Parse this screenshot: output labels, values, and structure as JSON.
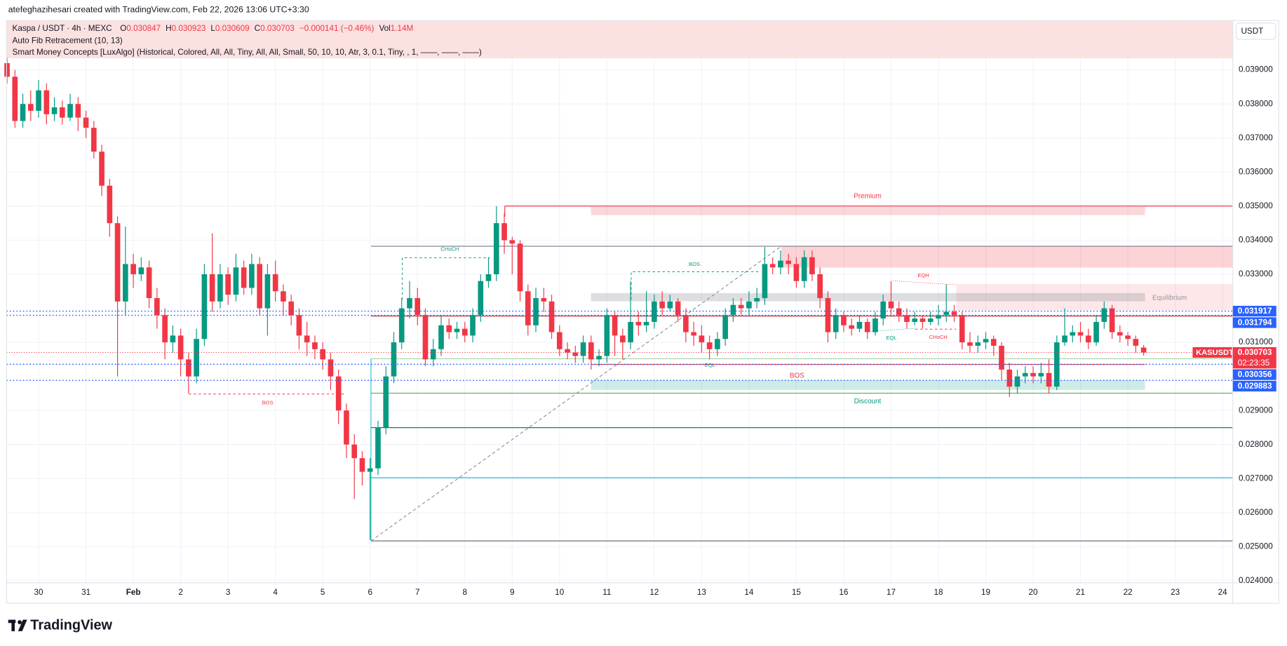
{
  "chart_data": {
    "type": "candlestick",
    "credit": "atefeghazihesari created with TradingView.com, Feb 22, 2026 13:06 UTC+3:30",
    "legend": {
      "symbol": "Kaspa / USDT · 4h · MEXC",
      "labels": [
        "O",
        "H",
        "L",
        "C"
      ],
      "change": "−0.000141 (−0.46%)",
      "volume_label": "Vol",
      "volume": "1.14M"
    },
    "indicators": [
      "Auto Fib Retracement (10, 13)",
      "Smart Money Concepts [LuxAlgo] (Historical, Colored, All, All, Tiny, All, All, Small, 50, 10, 10, Atr, 3, 0.1, Tiny, , 1, ——, ——, ——)"
    ],
    "currency": "USDT",
    "ticker": "KASUSDT",
    "countdown": "02:23:35",
    "logo": "TradingView",
    "annotations": [
      "BOS",
      "CHoCH",
      "BOS",
      "Premium",
      "Equilibrium",
      "BOS",
      "Discount",
      "EQH",
      "CHoCH",
      "EQL",
      "EQL"
    ],
    "up_color": "#089981",
    "down_color": "#f23645",
    "grid": true,
    "price_labels": [
      {
        "value": 0.031917,
        "color": "#2962ff"
      },
      {
        "value": 0.031794,
        "color": "#2962ff"
      },
      {
        "value": 0.030356,
        "color": "#2962ff"
      },
      {
        "value": 0.029883,
        "color": "#2962ff"
      }
    ],
    "xlim": [
      -0.06,
      155.3
    ],
    "ylim": [
      0.02394,
      0.04045
    ],
    "xticks": [
      {
        "value": 4,
        "label": "30"
      },
      {
        "value": 10,
        "label": "31"
      },
      {
        "value": 16,
        "label": "Feb"
      },
      {
        "value": 22,
        "label": "2"
      },
      {
        "value": 28,
        "label": "3"
      },
      {
        "value": 34,
        "label": "4"
      },
      {
        "value": 40,
        "label": "5"
      },
      {
        "value": 46,
        "label": "6"
      },
      {
        "value": 52,
        "label": "7"
      },
      {
        "value": 58,
        "label": "8"
      },
      {
        "value": 64,
        "label": "9"
      },
      {
        "value": 70,
        "label": "10"
      },
      {
        "value": 76,
        "label": "11"
      },
      {
        "value": 82,
        "label": "12"
      },
      {
        "value": 88,
        "label": "13"
      },
      {
        "value": 94,
        "label": "14"
      },
      {
        "value": 100,
        "label": "15"
      },
      {
        "value": 106,
        "label": "16"
      },
      {
        "value": 112,
        "label": "17"
      },
      {
        "value": 118,
        "label": "18"
      },
      {
        "value": 124,
        "label": "19"
      },
      {
        "value": 130,
        "label": "20"
      },
      {
        "value": 136,
        "label": "21"
      },
      {
        "value": 142,
        "label": "22"
      },
      {
        "value": 148,
        "label": "23"
      },
      {
        "value": 154,
        "label": "24"
      }
    ],
    "yticks": [
      {
        "value": 0.024,
        "label": "0.024000"
      },
      {
        "value": 0.025,
        "label": "0.025000"
      },
      {
        "value": 0.026,
        "label": "0.026000"
      },
      {
        "value": 0.027,
        "label": "0.027000"
      },
      {
        "value": 0.028,
        "label": "0.028000"
      },
      {
        "value": 0.029,
        "label": "0.029000"
      },
      {
        "value": 0.031,
        "label": "0.031000"
      },
      {
        "value": 0.033,
        "label": "0.033000"
      },
      {
        "value": 0.034,
        "label": "0.034000"
      },
      {
        "value": 0.035,
        "label": "0.035000"
      },
      {
        "value": 0.036,
        "label": "0.036000"
      },
      {
        "value": 0.037,
        "label": "0.037000"
      },
      {
        "value": 0.038,
        "label": "0.038000"
      },
      {
        "value": 0.039,
        "label": "0.039000"
      }
    ],
    "x": [
      0,
      1,
      2,
      3,
      4,
      5,
      6,
      7,
      8,
      9,
      10,
      11,
      12,
      13,
      14,
      15,
      16,
      17,
      18,
      19,
      20,
      21,
      22,
      23,
      24,
      25,
      26,
      27,
      28,
      29,
      30,
      31,
      32,
      33,
      34,
      35,
      36,
      37,
      38,
      39,
      40,
      41,
      42,
      43,
      44,
      45,
      46,
      47,
      48,
      49,
      50,
      51,
      52,
      53,
      54,
      55,
      56,
      57,
      58,
      59,
      60,
      61,
      62,
      63,
      64,
      65,
      66,
      67,
      68,
      69,
      70,
      71,
      72,
      73,
      74,
      75,
      76,
      77,
      78,
      79,
      80,
      81,
      82,
      83,
      84,
      85,
      86,
      87,
      88,
      89,
      90,
      91,
      92,
      93,
      94,
      95,
      96,
      97,
      98,
      99,
      100,
      101,
      102,
      103,
      104,
      105,
      106,
      107,
      108,
      109,
      110,
      111,
      112,
      113,
      114,
      115,
      116,
      117,
      118,
      119,
      120,
      121,
      122,
      123,
      124,
      125,
      126,
      127,
      128,
      129,
      130,
      131,
      132,
      133,
      134,
      135,
      136,
      137,
      138,
      139,
      140,
      141,
      142,
      143,
      144
    ],
    "open": [
      0.0392,
      0.0388,
      0.0375,
      0.038,
      0.0378,
      0.0384,
      0.0377,
      0.0379,
      0.0376,
      0.038,
      0.0376,
      0.0373,
      0.0366,
      0.0356,
      0.0345,
      0.0322,
      0.0333,
      0.033,
      0.0332,
      0.0323,
      0.0318,
      0.031,
      0.0312,
      0.0305,
      0.03,
      0.0311,
      0.033,
      0.0322,
      0.033,
      0.0324,
      0.0332,
      0.0326,
      0.0333,
      0.032,
      0.033,
      0.0325,
      0.0322,
      0.0318,
      0.0312,
      0.031,
      0.0308,
      0.0305,
      0.03,
      0.029,
      0.028,
      0.0276,
      0.0272,
      0.0273,
      0.0285,
      0.03,
      0.031,
      0.032,
      0.0323,
      0.0318,
      0.0305,
      0.0308,
      0.0315,
      0.0313,
      0.0314,
      0.0312,
      0.0318,
      0.0328,
      0.033,
      0.0345,
      0.034,
      0.0339,
      0.0325,
      0.0315,
      0.0323,
      0.0322,
      0.0313,
      0.0308,
      0.0307,
      0.0306,
      0.031,
      0.0305,
      0.0306,
      0.0318,
      0.0312,
      0.031,
      0.0316,
      0.0315,
      0.0316,
      0.0322,
      0.032,
      0.0322,
      0.0318,
      0.0313,
      0.0312,
      0.031,
      0.0308,
      0.0311,
      0.0318,
      0.0321,
      0.032,
      0.0322,
      0.0323,
      0.0333,
      0.0332,
      0.0334,
      0.0333,
      0.0328,
      0.0335,
      0.033,
      0.0323,
      0.0313,
      0.0318,
      0.0315,
      0.0314,
      0.0316,
      0.0313,
      0.0317,
      0.0322,
      0.032,
      0.0318,
      0.0316,
      0.0317,
      0.0316,
      0.0317,
      0.0318,
      0.0319,
      0.0318,
      0.031,
      0.0309,
      0.031,
      0.0311,
      0.0309,
      0.0302,
      0.0297,
      0.03,
      0.0301,
      0.03,
      0.0301,
      0.0297,
      0.031,
      0.0312,
      0.0313,
      0.0312,
      0.031,
      0.0316,
      0.032,
      0.0313,
      0.0312,
      0.0311,
      0.030847
    ],
    "high": [
      0.0394,
      0.039,
      0.0383,
      0.0384,
      0.0387,
      0.0386,
      0.0382,
      0.0381,
      0.0383,
      0.0382,
      0.0378,
      0.0375,
      0.0368,
      0.0358,
      0.0347,
      0.0344,
      0.0336,
      0.0335,
      0.0334,
      0.0326,
      0.032,
      0.0315,
      0.0314,
      0.0307,
      0.0314,
      0.0333,
      0.0342,
      0.0333,
      0.0332,
      0.0336,
      0.0334,
      0.0336,
      0.0335,
      0.0333,
      0.0334,
      0.0327,
      0.0324,
      0.032,
      0.0316,
      0.0312,
      0.031,
      0.0307,
      0.0302,
      0.0292,
      0.0283,
      0.0278,
      0.0276,
      0.0287,
      0.0303,
      0.0313,
      0.0323,
      0.0328,
      0.0326,
      0.032,
      0.0311,
      0.0318,
      0.0317,
      0.0316,
      0.0316,
      0.032,
      0.033,
      0.0335,
      0.035,
      0.0348,
      0.0341,
      0.034,
      0.0327,
      0.0326,
      0.0326,
      0.0324,
      0.0315,
      0.031,
      0.0309,
      0.0312,
      0.0312,
      0.0308,
      0.032,
      0.0319,
      0.0314,
      0.0328,
      0.0319,
      0.0325,
      0.0324,
      0.0325,
      0.0324,
      0.0323,
      0.032,
      0.0316,
      0.0315,
      0.0312,
      0.0313,
      0.032,
      0.0323,
      0.0323,
      0.0325,
      0.0326,
      0.0338,
      0.0335,
      0.0337,
      0.0336,
      0.0335,
      0.0337,
      0.0337,
      0.0332,
      0.0325,
      0.032,
      0.0319,
      0.0317,
      0.0318,
      0.0317,
      0.0319,
      0.0324,
      0.0328,
      0.0322,
      0.032,
      0.0319,
      0.0318,
      0.0319,
      0.0321,
      0.0327,
      0.0321,
      0.0319,
      0.0313,
      0.0312,
      0.0313,
      0.0312,
      0.031,
      0.0304,
      0.0302,
      0.0303,
      0.0303,
      0.0304,
      0.0305,
      0.0312,
      0.032,
      0.0315,
      0.0316,
      0.0314,
      0.0318,
      0.0322,
      0.0321,
      0.0315,
      0.0313,
      0.0312,
      0.030923
    ],
    "low": [
      0.0386,
      0.0373,
      0.0373,
      0.0375,
      0.0376,
      0.0374,
      0.0375,
      0.0374,
      0.0375,
      0.0372,
      0.037,
      0.0364,
      0.0353,
      0.0341,
      0.03,
      0.0318,
      0.0326,
      0.0328,
      0.032,
      0.0314,
      0.0305,
      0.0307,
      0.03,
      0.0295,
      0.0298,
      0.0309,
      0.0319,
      0.032,
      0.0321,
      0.0322,
      0.0324,
      0.0324,
      0.0318,
      0.0312,
      0.0322,
      0.0318,
      0.0315,
      0.0308,
      0.0306,
      0.0305,
      0.0302,
      0.0296,
      0.0286,
      0.0276,
      0.0264,
      0.0268,
      0.0252,
      0.0271,
      0.0283,
      0.0298,
      0.0308,
      0.0317,
      0.0315,
      0.0303,
      0.0303,
      0.0306,
      0.0311,
      0.0311,
      0.031,
      0.031,
      0.0316,
      0.0326,
      0.0328,
      0.0336,
      0.033,
      0.0322,
      0.0312,
      0.0313,
      0.0319,
      0.0311,
      0.0306,
      0.0305,
      0.0304,
      0.0304,
      0.0302,
      0.0303,
      0.0304,
      0.0306,
      0.0305,
      0.0308,
      0.0312,
      0.0313,
      0.0314,
      0.0318,
      0.0319,
      0.0316,
      0.031,
      0.0309,
      0.0307,
      0.0305,
      0.0306,
      0.0309,
      0.0316,
      0.0318,
      0.0318,
      0.032,
      0.0321,
      0.033,
      0.033,
      0.033,
      0.0326,
      0.0326,
      0.0328,
      0.032,
      0.031,
      0.0311,
      0.0313,
      0.0312,
      0.0313,
      0.0311,
      0.0312,
      0.0315,
      0.0318,
      0.0316,
      0.0314,
      0.0315,
      0.0314,
      0.0315,
      0.0315,
      0.0316,
      0.0316,
      0.0308,
      0.0307,
      0.0307,
      0.0308,
      0.0306,
      0.0299,
      0.0294,
      0.0295,
      0.0298,
      0.0298,
      0.0298,
      0.0295,
      0.0296,
      0.0309,
      0.031,
      0.031,
      0.0308,
      0.0309,
      0.0314,
      0.0311,
      0.031,
      0.0309,
      0.0307,
      0.030609
    ],
    "close": [
      0.0388,
      0.0375,
      0.038,
      0.0378,
      0.0384,
      0.0377,
      0.0379,
      0.0376,
      0.038,
      0.0376,
      0.0373,
      0.0366,
      0.0356,
      0.0345,
      0.0322,
      0.0333,
      0.033,
      0.0332,
      0.0323,
      0.0318,
      0.031,
      0.0312,
      0.0305,
      0.03,
      0.0311,
      0.033,
      0.0322,
      0.033,
      0.0324,
      0.0332,
      0.0326,
      0.0333,
      0.032,
      0.033,
      0.0325,
      0.0322,
      0.0318,
      0.0312,
      0.031,
      0.0308,
      0.0305,
      0.03,
      0.029,
      0.028,
      0.0276,
      0.0272,
      0.0273,
      0.0285,
      0.03,
      0.031,
      0.032,
      0.0323,
      0.0318,
      0.0305,
      0.0308,
      0.0315,
      0.0313,
      0.0314,
      0.0312,
      0.0318,
      0.0328,
      0.033,
      0.0345,
      0.034,
      0.0339,
      0.0325,
      0.0315,
      0.0323,
      0.0322,
      0.0313,
      0.0308,
      0.0307,
      0.0306,
      0.031,
      0.0305,
      0.0306,
      0.0318,
      0.0312,
      0.031,
      0.0316,
      0.0315,
      0.0316,
      0.0322,
      0.032,
      0.0322,
      0.0318,
      0.0313,
      0.0312,
      0.031,
      0.0308,
      0.0311,
      0.0318,
      0.0321,
      0.032,
      0.0322,
      0.0323,
      0.0333,
      0.0332,
      0.0334,
      0.0333,
      0.0328,
      0.0335,
      0.033,
      0.0323,
      0.0313,
      0.0318,
      0.0315,
      0.0314,
      0.0316,
      0.0313,
      0.0317,
      0.0322,
      0.032,
      0.0318,
      0.0316,
      0.0317,
      0.0316,
      0.0317,
      0.0318,
      0.0319,
      0.0318,
      0.031,
      0.0309,
      0.031,
      0.0311,
      0.0309,
      0.0302,
      0.0297,
      0.03,
      0.0301,
      0.03,
      0.0301,
      0.0297,
      0.031,
      0.0312,
      0.0313,
      0.0312,
      0.031,
      0.0316,
      0.032,
      0.0313,
      0.0312,
      0.0311,
      0.0309,
      0.030703
    ]
  }
}
